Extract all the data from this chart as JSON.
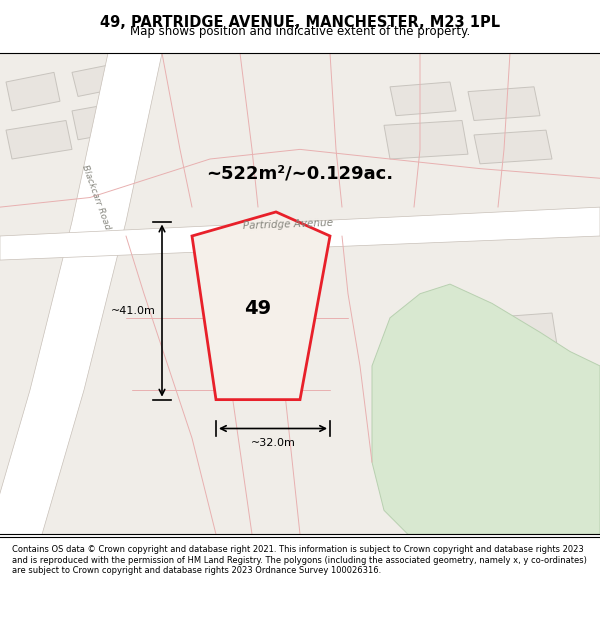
{
  "title": "49, PARTRIDGE AVENUE, MANCHESTER, M23 1PL",
  "subtitle": "Map shows position and indicative extent of the property.",
  "area_label": "~522m²/~0.129ac.",
  "plot_number": "49",
  "dim_width": "~32.0m",
  "dim_height": "~41.0m",
  "footer": "Contains OS data © Crown copyright and database right 2021. This information is subject to Crown copyright and database rights 2023 and is reproduced with the permission of HM Land Registry. The polygons (including the associated geometry, namely x, y co-ordinates) are subject to Crown copyright and database rights 2023 Ordnance Survey 100026316.",
  "bg_color": "#f0ede8",
  "map_bg": "#f0ede8",
  "road_color": "#ffffff",
  "road_outline": "#d0c8be",
  "plot_fill": "#f5f0ea",
  "plot_outline": "#e8202a",
  "green_area": "#d8e8d0",
  "street_label": "Partridge Avenue",
  "road_label": "Blackcarr Road"
}
